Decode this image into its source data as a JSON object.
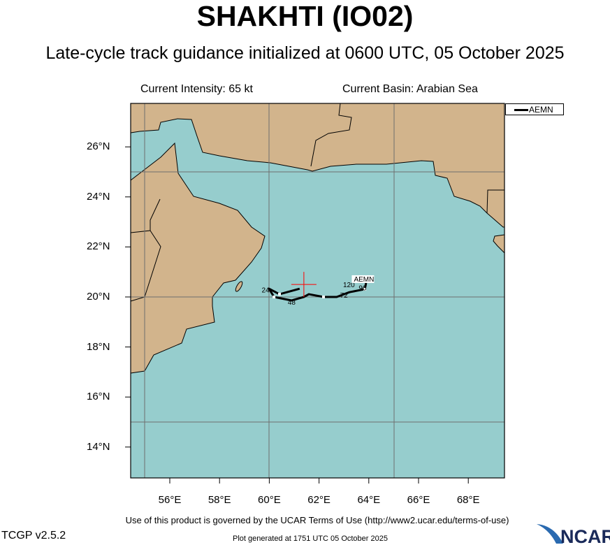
{
  "header": {
    "title": "SHAKHTI (IO02)",
    "subtitle": "Late-cycle track guidance initialized at 0600 UTC, 05 October 2025",
    "current_intensity": "Current Intensity: 65 kt",
    "current_basin": "Current Basin: Arabian Sea"
  },
  "map": {
    "extent": {
      "lon": [
        54.4,
        69.5
      ],
      "lat": [
        12.7,
        27.7
      ]
    },
    "colors": {
      "land": "#d2b48c",
      "ocean": "#96cdcd",
      "grid": "#6e6e6e",
      "track": "#000000",
      "current_position": "#ff0000"
    },
    "lon_ticks": [
      "56°E",
      "58°E",
      "60°E",
      "62°E",
      "64°E",
      "66°E",
      "68°E"
    ],
    "lat_ticks": [
      "26°N",
      "24°N",
      "22°N",
      "20°N",
      "18°N",
      "16°N",
      "14°N"
    ],
    "current_position": {
      "lon": 61.39,
      "lat": 20.5
    },
    "legend": [
      {
        "name": "AEMN",
        "color": "#000000"
      }
    ],
    "tracks": [
      {
        "model": "AEMN",
        "points": [
          {
            "lon": 61.22,
            "lat": 20.33
          },
          {
            "lon": 60.41,
            "lat": 20.11
          },
          {
            "lon": 59.99,
            "lat": 20.33
          },
          {
            "lon": 60.19,
            "lat": 20.0
          },
          {
            "lon": 60.89,
            "lat": 19.86
          },
          {
            "lon": 61.39,
            "lat": 20.0
          },
          {
            "lon": 61.59,
            "lat": 20.11
          },
          {
            "lon": 62.18,
            "lat": 20.0
          },
          {
            "lon": 62.71,
            "lat": 20.0
          },
          {
            "lon": 63.22,
            "lat": 20.19
          },
          {
            "lon": 63.84,
            "lat": 20.31
          },
          {
            "lon": 63.89,
            "lat": 20.56
          }
        ],
        "markers": [
          {
            "lon": 60.41,
            "lat": 20.11
          },
          {
            "lon": 60.19,
            "lat": 20.0
          },
          {
            "lon": 62.18,
            "lat": 20.0
          },
          {
            "lon": 63.84,
            "lat": 20.31
          }
        ],
        "hour_labels": [
          {
            "text": "24",
            "lon": 59.85,
            "lat": 20.3
          },
          {
            "text": "48",
            "lon": 60.9,
            "lat": 19.8
          },
          {
            "text": "72",
            "lon": 63.0,
            "lat": 20.08
          },
          {
            "text": "96",
            "lon": 63.75,
            "lat": 20.38
          },
          {
            "text": "120",
            "lon": 63.2,
            "lat": 20.5
          }
        ],
        "label": {
          "text": "AEMN",
          "lon": 63.4,
          "lat": 20.7
        }
      }
    ]
  },
  "footer": {
    "terms": "Use of this product is governed by the UCAR Terms of Use (http://www2.ucar.edu/terms-of-use)",
    "version": "TCGP v2.5.2",
    "generated": "Plot generated at 1751 UTC   05 October 2025",
    "logo_text": "NCAR"
  }
}
